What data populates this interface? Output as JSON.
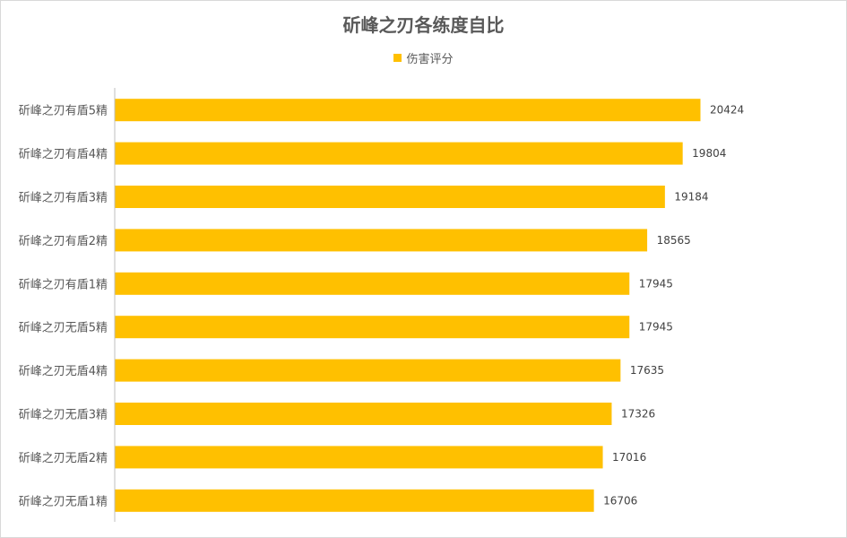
{
  "chart_data": {
    "type": "bar",
    "orientation": "horizontal",
    "title": "斫峰之刃各练度自比",
    "categories": [
      "斫峰之刃有盾5精",
      "斫峰之刃有盾4精",
      "斫峰之刃有盾3精",
      "斫峰之刃有盾2精",
      "斫峰之刃有盾1精",
      "斫峰之刃无盾5精",
      "斫峰之刃无盾4精",
      "斫峰之刃无盾3精",
      "斫峰之刃无盾2精",
      "斫峰之刃无盾1精"
    ],
    "series": [
      {
        "name": "伤害评分",
        "values": [
          20424,
          19804,
          19184,
          18565,
          17945,
          17945,
          17635,
          17326,
          17016,
          16706
        ]
      }
    ],
    "xlim": [
      0,
      22000
    ],
    "grid": false,
    "legend_position": "top",
    "data_labels": true
  },
  "colors": {
    "bar": "#ffc000",
    "axis": "#bfbfbf",
    "title": "#595959",
    "text": "#595959"
  }
}
